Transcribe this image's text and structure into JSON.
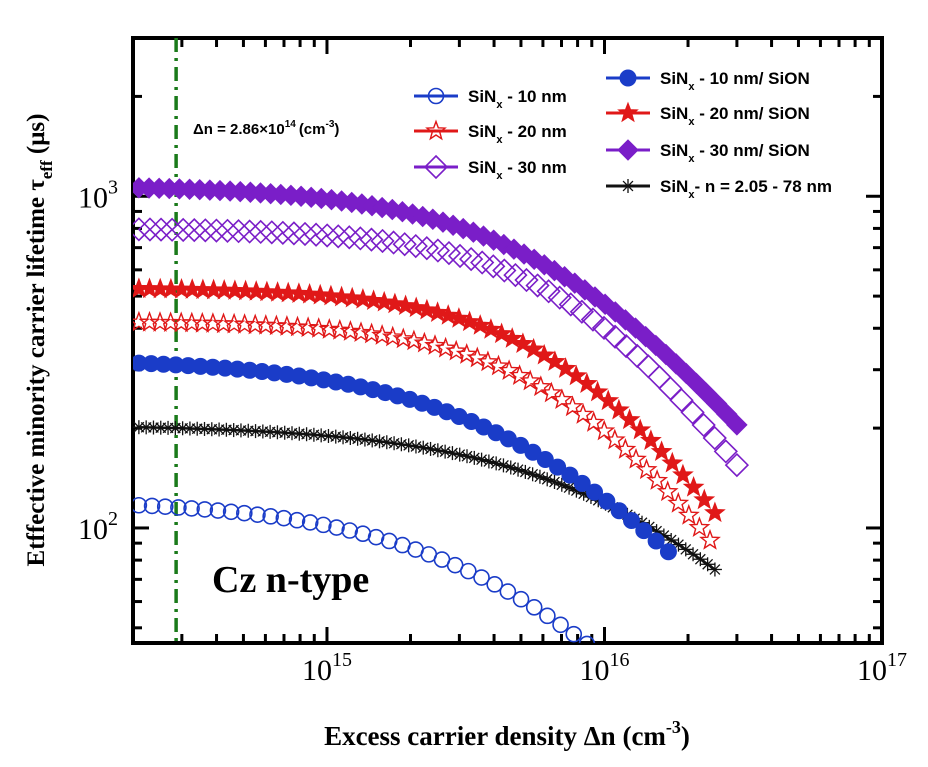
{
  "chart_data": {
    "type": "scatter",
    "title": "",
    "xlabel": "Excess carrier density Δn (cm-3)",
    "ylabel": "Effective minority carrier lifetime τeff (μs)",
    "x_scale": "log",
    "y_scale": "log",
    "xlim": [
      200000000000000.0,
      1e+17
    ],
    "ylim": [
      45,
      3000
    ],
    "x_ticks": [
      {
        "base": "10",
        "exp": "15",
        "value": 1000000000000000.0
      },
      {
        "base": "10",
        "exp": "16",
        "value": 1e+16
      },
      {
        "base": "10",
        "exp": "17",
        "value": 1e+17
      }
    ],
    "y_ticks": [
      {
        "base": "10",
        "exp": "2",
        "value": 100
      },
      {
        "base": "10",
        "exp": "3",
        "value": 1000
      }
    ],
    "annotations": {
      "sample_label": "Cz n-type",
      "vline_value": 286000000000000.0,
      "vline_label": "Δn = 2.86×10",
      "vline_label_exp": "14",
      "vline_label_unit": "(cm",
      "vline_label_unit_exp": "-3",
      "vline_label_close": ")",
      "vline_color": "#1a7a1a"
    },
    "series": [
      {
        "name": "SiNx - 10 nm",
        "marker": "circle-open",
        "color": "#1a3cc8",
        "x_start": 210000000000000.0,
        "x_end": 1.2e+16,
        "tau0": 122,
        "knee": 5000000000000000.0,
        "p": 1.0,
        "n_points": 38
      },
      {
        "name": "SiNx - 20 nm",
        "marker": "star-open",
        "color": "#e01818",
        "x_start": 210000000000000.0,
        "x_end": 2.4e+16,
        "tau0": 420,
        "knee": 9000000000000000.0,
        "p": 1.3,
        "n_points": 55
      },
      {
        "name": "SiNx - 30 nm",
        "marker": "diamond-open",
        "color": "#7a1ec8",
        "x_start": 210000000000000.0,
        "x_end": 3e+16,
        "tau0": 800,
        "knee": 1e+16,
        "p": 1.3,
        "n_points": 55
      },
      {
        "name": "SiNx - 10 nm/ SiON",
        "marker": "circle-filled",
        "color": "#1a3cc8",
        "x_start": 210000000000000.0,
        "x_end": 1.7e+16,
        "tau0": 325,
        "knee": 6000000000000000.0,
        "p": 1.0,
        "n_points": 44
      },
      {
        "name": "SiNx - 20 nm/ SiON",
        "marker": "star-filled",
        "color": "#e01818",
        "x_start": 210000000000000.0,
        "x_end": 2.5e+16,
        "tau0": 530,
        "knee": 9000000000000000.0,
        "p": 1.3,
        "n_points": 55
      },
      {
        "name": "SiNx - 30 nm/ SiON",
        "marker": "diamond-filled",
        "color": "#7a1ec8",
        "x_start": 210000000000000.0,
        "x_end": 3e+16,
        "tau0": 1080,
        "knee": 8000000000000000.0,
        "p": 1.1,
        "n_points": 60
      },
      {
        "name": "SiNx- n = 2.05 - 78 nm",
        "marker": "asterisk",
        "color": "#111111",
        "x_start": 210000000000000.0,
        "x_end": 2.5e+16,
        "tau0": 205,
        "knee": 1.4e+16,
        "p": 0.95,
        "n_points": 80
      }
    ],
    "legend": [
      {
        "base": "SiN",
        "sub": "x",
        "rest": " - 10 nm",
        "marker": "circle-open",
        "color": "#1a3cc8"
      },
      {
        "base": "SiN",
        "sub": "x",
        "rest": " - 20 nm",
        "marker": "star-open",
        "color": "#e01818"
      },
      {
        "base": "SiN",
        "sub": "x",
        "rest": " - 30 nm",
        "marker": "diamond-open",
        "color": "#7a1ec8"
      },
      {
        "base": "SiN",
        "sub": "x",
        "rest": " - 10 nm/ SiON",
        "marker": "circle-filled",
        "color": "#1a3cc8"
      },
      {
        "base": "SiN",
        "sub": "x",
        "rest": " - 20 nm/ SiON",
        "marker": "star-filled",
        "color": "#e01818"
      },
      {
        "base": "SiN",
        "sub": "x",
        "rest": " - 30 nm/ SiON",
        "marker": "diamond-filled",
        "color": "#7a1ec8"
      },
      {
        "base": "SiN",
        "sub": "x",
        "rest": "- n = 2.05 - 78 nm",
        "marker": "asterisk",
        "color": "#111111"
      }
    ],
    "axis_label_parts": {
      "x_main": "Excess carrier density Δn (cm",
      "x_exp": "-3",
      "x_close": ")",
      "y_main": "Etffective minority carrier lifetime  τ",
      "y_sub": "eff",
      "y_unit": " (μs)"
    }
  }
}
